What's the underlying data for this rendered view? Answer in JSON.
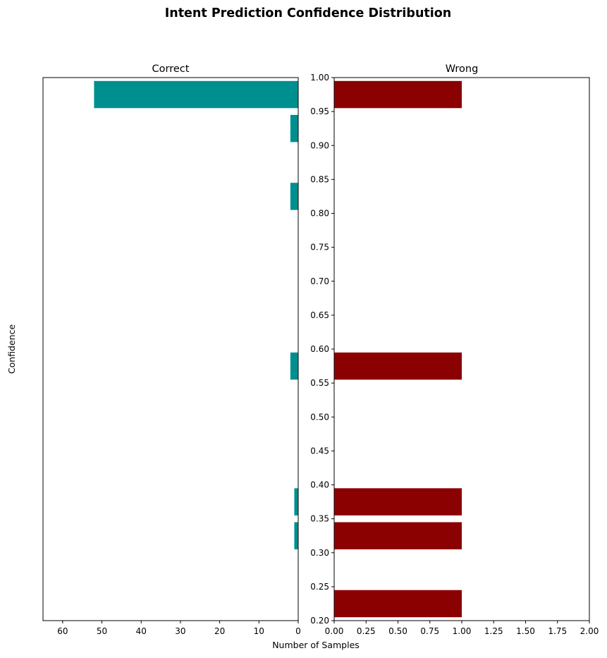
{
  "chart_data": {
    "title": "Intent Prediction Confidence Distribution",
    "xlabel": "Number of Samples",
    "ylabel": "Confidence",
    "type": "bar",
    "orientation": "horizontal",
    "bin_width": 0.04,
    "y_ticks": [
      "0.20",
      "0.25",
      "0.30",
      "0.35",
      "0.40",
      "0.45",
      "0.50",
      "0.55",
      "0.60",
      "0.65",
      "0.70",
      "0.75",
      "0.80",
      "0.85",
      "0.90",
      "0.95",
      "1.00"
    ],
    "ylim": [
      0.2,
      1.0
    ],
    "panels": [
      {
        "title": "Correct",
        "color": "#008f8f",
        "xlim": [
          65,
          0
        ],
        "x_ticks": [
          "60",
          "50",
          "40",
          "30",
          "20",
          "10",
          "0"
        ],
        "bars": [
          {
            "y": 0.975,
            "value": 52
          },
          {
            "y": 0.925,
            "value": 2
          },
          {
            "y": 0.825,
            "value": 2
          },
          {
            "y": 0.575,
            "value": 2
          },
          {
            "y": 0.375,
            "value": 1
          },
          {
            "y": 0.325,
            "value": 1
          }
        ]
      },
      {
        "title": "Wrong",
        "color": "#8b0000",
        "xlim": [
          0,
          2
        ],
        "x_ticks": [
          "0.00",
          "0.25",
          "0.50",
          "0.75",
          "1.00",
          "1.25",
          "1.50",
          "1.75",
          "2.00"
        ],
        "bars": [
          {
            "y": 0.975,
            "value": 1
          },
          {
            "y": 0.575,
            "value": 1
          },
          {
            "y": 0.375,
            "value": 1
          },
          {
            "y": 0.325,
            "value": 1
          },
          {
            "y": 0.225,
            "value": 1
          }
        ]
      }
    ]
  }
}
